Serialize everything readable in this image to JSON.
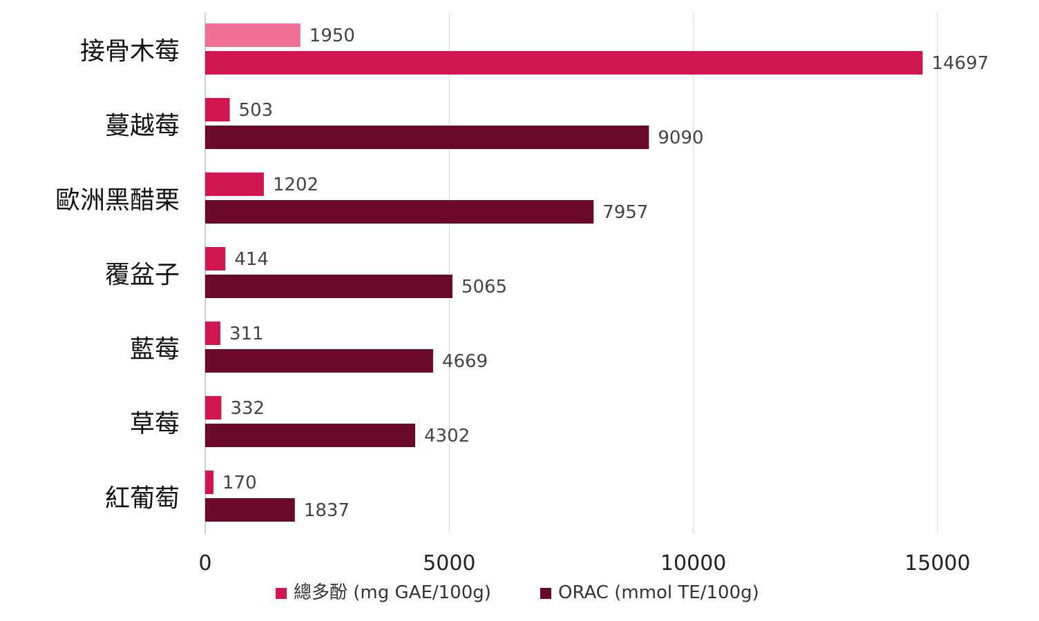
{
  "chart_data": {
    "type": "bar",
    "orientation": "horizontal",
    "categories": [
      "接骨木莓",
      "蔓越莓",
      "歐洲黑醋栗",
      "覆盆子",
      "藍莓",
      "草莓",
      "紅葡萄"
    ],
    "series": [
      {
        "name": "總多酚 (mg GAE/100g)",
        "color": "#d1164f",
        "values": [
          1950,
          503,
          1202,
          414,
          311,
          332,
          170
        ],
        "point_colors": [
          "#f07096",
          "#d1164f",
          "#d1164f",
          "#d1164f",
          "#d1164f",
          "#d1164f",
          "#d1164f"
        ]
      },
      {
        "name": "ORAC (mmol TE/100g)",
        "color": "#6a0a2b",
        "values": [
          14697,
          9090,
          7957,
          5065,
          4669,
          4302,
          1837
        ],
        "point_colors": [
          "#d1164f",
          "#6a0a2b",
          "#6a0a2b",
          "#6a0a2b",
          "#6a0a2b",
          "#6a0a2b",
          "#6a0a2b"
        ]
      }
    ],
    "x_ticks": [
      "0",
      "5000",
      "10000",
      "15000"
    ],
    "xlim": [
      0,
      16000
    ],
    "grid": true,
    "legend_position": "bottom",
    "data_labels": true
  }
}
